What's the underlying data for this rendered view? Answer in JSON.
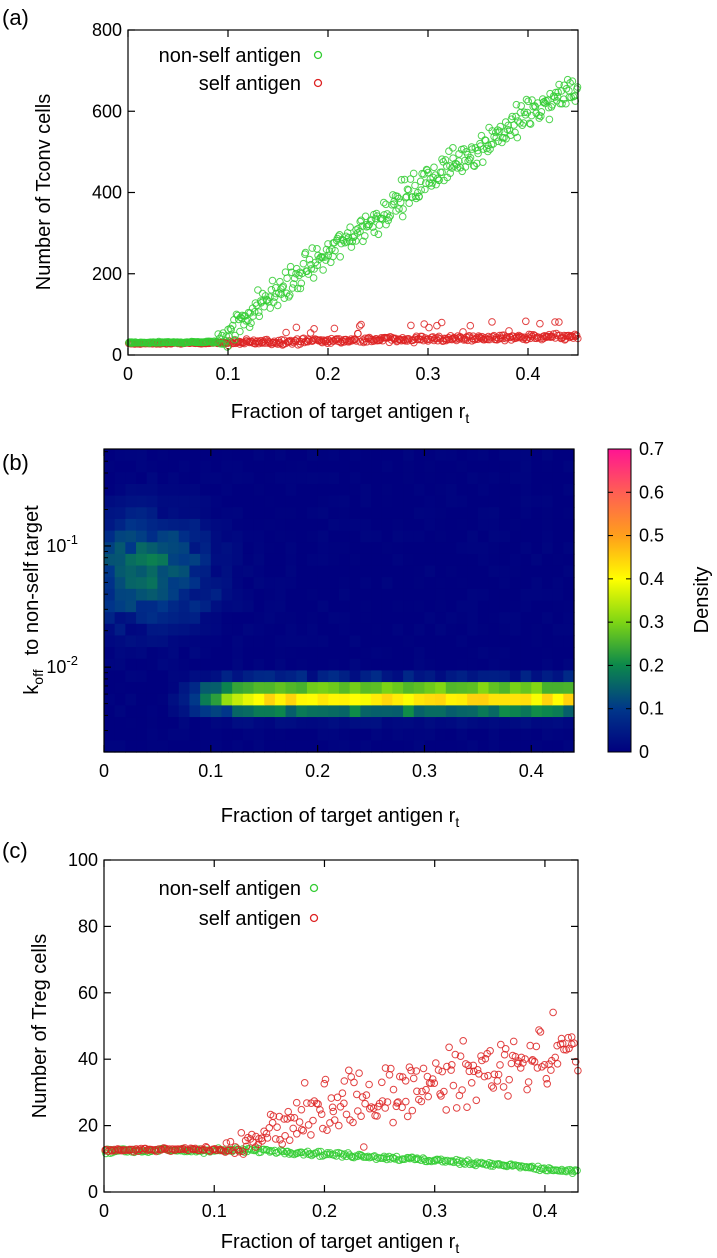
{
  "figure": {
    "panel_a_label": "(a)",
    "panel_b_label": "(b)",
    "panel_c_label": "(c)"
  },
  "colors": {
    "nonself": "#33cc33",
    "self": "#dd2222",
    "heat_low": "#00007f",
    "heat_high": "#ff1493"
  },
  "chart_data": [
    {
      "panel": "(a)",
      "type": "scatter",
      "xlabel": "Fraction of target antigen r",
      "xlabel_sub": "t",
      "ylabel": "Number of Tconv cells",
      "xlim": [
        0,
        0.45
      ],
      "ylim": [
        0,
        800
      ],
      "xticks": [
        "0",
        "0.1",
        "0.2",
        "0.3",
        "0.4"
      ],
      "yticks": [
        "0",
        "200",
        "400",
        "600",
        "800"
      ],
      "legend": [
        "non-self antigen",
        "self antigen"
      ],
      "series": [
        {
          "name": "non-self antigen",
          "description": "~30 for r_t < 0.09, then rises roughly linearly to ~660 at r_t = 0.45, scatter ±40",
          "anchors": [
            [
              0.0,
              30
            ],
            [
              0.09,
              32
            ],
            [
              0.12,
              100
            ],
            [
              0.2,
              250
            ],
            [
              0.3,
              430
            ],
            [
              0.4,
              590
            ],
            [
              0.45,
              660
            ]
          ]
        },
        {
          "name": "self antigen",
          "description": "~28 at r_t = 0, slowly rising to ~45 at r_t = 0.45 with occasional outliers up to ~80",
          "anchors": [
            [
              0.0,
              28
            ],
            [
              0.1,
              30
            ],
            [
              0.2,
              35
            ],
            [
              0.3,
              40
            ],
            [
              0.45,
              45
            ]
          ]
        }
      ]
    },
    {
      "panel": "(b)",
      "type": "heatmap",
      "xlabel": "Fraction of target antigen r",
      "xlabel_sub": "t",
      "ylabel_main": "k",
      "ylabel_sub": "off",
      "ylabel_rest": "to non-self target",
      "xlim": [
        0,
        0.44
      ],
      "ylim_log10": [
        -2.7,
        -0.2
      ],
      "xticks": [
        "0",
        "0.1",
        "0.2",
        "0.3",
        "0.4"
      ],
      "yticks": [
        {
          "base": "10",
          "exp": "-1"
        },
        {
          "base": "10",
          "exp": "-2"
        }
      ],
      "colorbar_label": "Density",
      "colorbar_ticks": [
        "0",
        "0.1",
        "0.2",
        "0.3",
        "0.4",
        "0.5",
        "0.6",
        "0.7"
      ],
      "zlim": [
        0,
        0.7
      ],
      "features": [
        {
          "name": "diffuse blob",
          "x_center": 0.04,
          "log10_k_center": -1.2,
          "peak_density": 0.2
        },
        {
          "name": "horizontal band",
          "x_range": [
            0.07,
            0.44
          ],
          "log10_k_center": -2.25,
          "peak_density": 0.45
        }
      ]
    },
    {
      "panel": "(c)",
      "type": "scatter",
      "xlabel": "Fraction of target antigen r",
      "xlabel_sub": "t",
      "ylabel": "Number of Treg cells",
      "xlim": [
        0,
        0.43
      ],
      "ylim": [
        0,
        100
      ],
      "xticks": [
        "0",
        "0.1",
        "0.2",
        "0.3",
        "0.4"
      ],
      "yticks": [
        "0",
        "20",
        "40",
        "60",
        "80",
        "100"
      ],
      "legend": [
        "non-self antigen",
        "self antigen"
      ],
      "series": [
        {
          "name": "non-self antigen",
          "description": "~12.5 flat until r_t = 0.15, then declines slowly to ~6 at r_t = 0.43",
          "anchors": [
            [
              0.0,
              12.5
            ],
            [
              0.15,
              12.5
            ],
            [
              0.25,
              10.5
            ],
            [
              0.35,
              8.5
            ],
            [
              0.43,
              6
            ]
          ]
        },
        {
          "name": "self antigen",
          "description": "~12.5 until r_t = 0.12, then rises with large scatter to ~43 at r_t = 0.43",
          "anchors": [
            [
              0.0,
              12.5
            ],
            [
              0.12,
              13
            ],
            [
              0.2,
              25
            ],
            [
              0.3,
              33
            ],
            [
              0.43,
              43
            ]
          ]
        }
      ]
    }
  ]
}
